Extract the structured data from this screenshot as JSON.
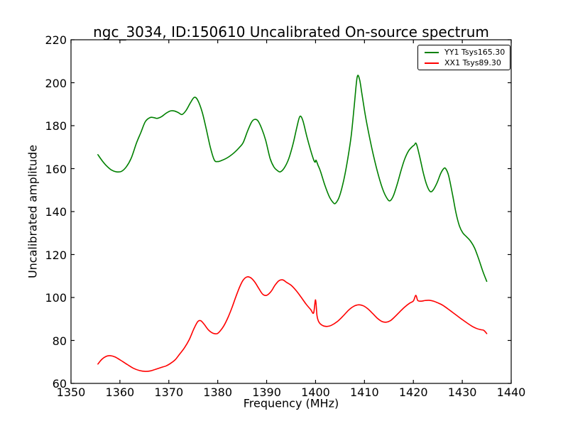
{
  "chart_data": {
    "type": "line",
    "title": "ngc_3034, ID:150610 Uncalibrated On-source spectrum",
    "xlabel": "Frequency (MHz)",
    "ylabel": "Uncalibrated amplitude",
    "xlim": [
      1350,
      1440
    ],
    "ylim": [
      60,
      220
    ],
    "xticks": [
      1350,
      1360,
      1370,
      1380,
      1390,
      1400,
      1410,
      1420,
      1430,
      1440
    ],
    "yticks": [
      60,
      80,
      100,
      120,
      140,
      160,
      180,
      200,
      220
    ],
    "grid": false,
    "background": "#ffffff",
    "axis_color": "#000000",
    "legend_position": "upper right",
    "series": [
      {
        "name": "YY1 Tsys165.30",
        "color": "#008000",
        "x": [
          1355.5,
          1356.4,
          1357.3,
          1358.3,
          1359.3,
          1360.3,
          1361.3,
          1362.3,
          1363.4,
          1364.3,
          1365.2,
          1366.2,
          1367.0,
          1367.6,
          1368.5,
          1369.5,
          1370.4,
          1371.2,
          1372.0,
          1372.7,
          1373.5,
          1374.4,
          1375.2,
          1375.9,
          1376.8,
          1377.6,
          1378.5,
          1379.3,
          1380.0,
          1380.8,
          1381.6,
          1382.4,
          1383.4,
          1384.4,
          1385.2,
          1386.1,
          1386.9,
          1387.5,
          1388.2,
          1389.0,
          1389.8,
          1390.7,
          1391.5,
          1392.2,
          1392.8,
          1393.6,
          1394.5,
          1395.4,
          1396.2,
          1396.8,
          1397.4,
          1398.2,
          1399.0,
          1399.6,
          1399.9,
          1400.1,
          1400.5,
          1401.0,
          1401.9,
          1402.8,
          1403.6,
          1404.1,
          1404.9,
          1405.8,
          1406.6,
          1407.3,
          1407.9,
          1408.5,
          1409.0,
          1409.5,
          1410.2,
          1411.0,
          1411.9,
          1412.9,
          1413.8,
          1414.6,
          1415.2,
          1415.9,
          1416.7,
          1417.5,
          1418.2,
          1419.0,
          1419.8,
          1420.2,
          1420.5,
          1420.8,
          1421.4,
          1422.0,
          1422.7,
          1423.4,
          1424.0,
          1424.8,
          1425.6,
          1426.2,
          1426.6,
          1427.2,
          1428.0,
          1428.7,
          1429.4,
          1430.1,
          1430.9,
          1431.7,
          1432.5,
          1433.3,
          1434.2,
          1435.0
        ],
        "y": [
          166.5,
          163.6,
          161.2,
          159.3,
          158.5,
          158.7,
          160.8,
          164.8,
          172.0,
          176.9,
          181.9,
          183.8,
          183.7,
          183.4,
          184.2,
          185.9,
          186.9,
          186.8,
          186.0,
          185.2,
          187.0,
          190.6,
          193.2,
          191.9,
          186.5,
          179.0,
          169.8,
          164.0,
          163.3,
          163.8,
          164.6,
          165.7,
          167.5,
          169.8,
          172.1,
          177.5,
          181.6,
          182.9,
          182.3,
          178.6,
          173.2,
          164.8,
          160.7,
          159.1,
          158.5,
          160.3,
          164.5,
          171.5,
          179.5,
          184.3,
          182.4,
          175.1,
          168.5,
          164.2,
          163.0,
          163.9,
          161.6,
          158.8,
          152.3,
          147.0,
          144.2,
          143.9,
          147.2,
          155.0,
          164.8,
          175.5,
          189.0,
          202.5,
          201.5,
          194.5,
          184.5,
          175.0,
          165.5,
          156.5,
          150.0,
          146.2,
          145.0,
          147.3,
          152.8,
          159.3,
          164.3,
          168.2,
          170.3,
          171.0,
          171.9,
          170.2,
          164.5,
          158.3,
          152.6,
          149.4,
          149.9,
          153.2,
          157.8,
          160.0,
          160.0,
          156.8,
          148.0,
          139.5,
          133.4,
          130.1,
          128.2,
          126.2,
          123.1,
          118.3,
          112.2,
          107.5
        ]
      },
      {
        "name": "XX1 Tsys89.30",
        "color": "#ff0000",
        "x": [
          1355.5,
          1356.3,
          1357.2,
          1358.0,
          1359.0,
          1360.2,
          1361.5,
          1362.8,
          1364.0,
          1365.2,
          1366.2,
          1367.2,
          1368.4,
          1369.5,
          1370.4,
          1371.3,
          1372.2,
          1373.2,
          1374.2,
          1375.1,
          1375.9,
          1376.5,
          1377.2,
          1378.1,
          1379.0,
          1379.9,
          1380.6,
          1381.3,
          1382.1,
          1382.9,
          1383.7,
          1384.5,
          1385.2,
          1386.0,
          1386.8,
          1387.6,
          1388.4,
          1389.2,
          1390.0,
          1390.9,
          1391.7,
          1392.5,
          1393.3,
          1394.1,
          1395.0,
          1396.0,
          1397.0,
          1398.1,
          1399.0,
          1399.6,
          1400.0,
          1400.3,
          1400.7,
          1401.4,
          1402.3,
          1403.2,
          1404.4,
          1405.6,
          1406.8,
          1407.8,
          1408.8,
          1409.8,
          1410.7,
          1411.7,
          1412.7,
          1413.6,
          1414.4,
          1415.3,
          1416.2,
          1417.2,
          1418.2,
          1419.2,
          1420.0,
          1420.5,
          1420.9,
          1421.6,
          1422.4,
          1423.2,
          1424.1,
          1425.0,
          1426.0,
          1427.0,
          1428.0,
          1429.0,
          1430.0,
          1431.0,
          1432.0,
          1432.9,
          1433.8,
          1434.4,
          1435.0
        ],
        "y": [
          69.0,
          71.2,
          72.6,
          72.9,
          72.3,
          70.7,
          68.8,
          67.0,
          66.0,
          65.6,
          65.8,
          66.5,
          67.4,
          68.2,
          69.4,
          71.0,
          73.6,
          76.6,
          80.5,
          85.3,
          88.7,
          89.2,
          87.6,
          84.9,
          83.4,
          83.2,
          84.7,
          87.0,
          90.7,
          95.2,
          100.3,
          105.0,
          108.1,
          109.6,
          109.1,
          107.1,
          104.2,
          101.5,
          101.0,
          102.8,
          105.7,
          107.8,
          108.2,
          107.0,
          105.7,
          103.3,
          100.3,
          96.8,
          94.4,
          92.8,
          98.9,
          91.5,
          88.5,
          87.0,
          86.5,
          87.0,
          88.7,
          91.3,
          94.2,
          95.9,
          96.6,
          96.1,
          94.7,
          92.5,
          90.2,
          88.8,
          88.5,
          89.2,
          91.0,
          93.3,
          95.5,
          97.3,
          98.4,
          101.0,
          98.6,
          98.3,
          98.6,
          98.7,
          98.3,
          97.5,
          96.4,
          94.8,
          93.1,
          91.4,
          89.7,
          88.1,
          86.6,
          85.6,
          85.0,
          84.7,
          83.2
        ]
      }
    ]
  }
}
